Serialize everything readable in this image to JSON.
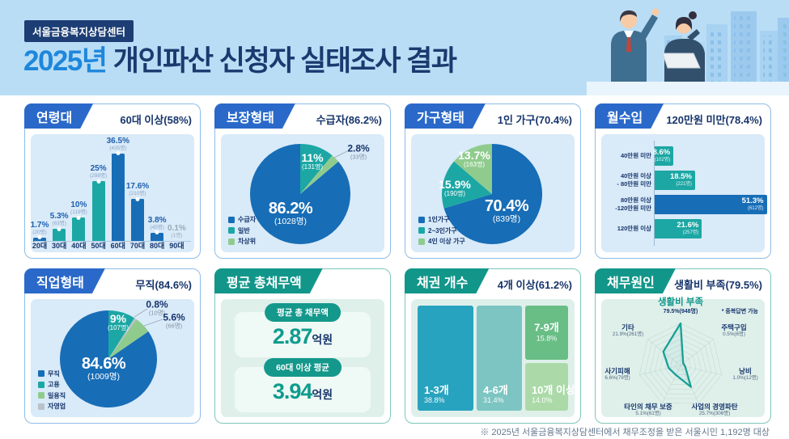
{
  "header": {
    "badge": "서울금융복지상담센터",
    "title_highlight": "2025년",
    "title_rest": " 개인파산 신청자 실태조사 결과"
  },
  "footer": {
    "note": "※ 2025년 서울금융복지상담센터에서 채무조정을 받은 서울시민 1,192명 대상"
  },
  "colors": {
    "band_bg": "#B9DDF5",
    "navy": "#17356B",
    "accent_blue": "#1E87DC",
    "ribbon_blue": "#2A69C9",
    "ribbon_teal": "#12968A",
    "bar_blue": "#176DB6",
    "bar_teal": "#1CA7A4",
    "light_green": "#90CB8E",
    "slice_gray": "#B9C2C9",
    "chart_bg_blue": "#D9EAF8",
    "chart_bg_mint": "#DFF0EB"
  },
  "chart_data": [
    {
      "id": "age",
      "type": "bar",
      "title": "연령대",
      "headline": "60대 이상(58%)",
      "categories": [
        "20대",
        "30대",
        "40대",
        "50대",
        "60대",
        "70대",
        "80대",
        "90대"
      ],
      "values": [
        1.7,
        5.3,
        10,
        25,
        36.5,
        17.6,
        3.8,
        0.1
      ],
      "value_labels": [
        "1.7%",
        "5.3%",
        "10%",
        "25%",
        "36.5%",
        "17.6%",
        "3.8%",
        "0.1%"
      ],
      "counts": [
        "(20명)",
        "(63명)",
        "(119명)",
        "(298명)",
        "(435명)",
        "(210명)",
        "(45명)",
        "(1명)"
      ],
      "bar_colors": [
        "blue",
        "teal",
        "teal",
        "teal",
        "blue",
        "blue",
        "blue",
        "blue"
      ],
      "ylim": [
        0,
        40
      ]
    },
    {
      "id": "security",
      "type": "pie",
      "title": "보장형태",
      "headline": "수급자(86.2%)",
      "slices": [
        {
          "name": "일반",
          "pct": 11,
          "label": "11%",
          "count": "(131명)",
          "color": "teal"
        },
        {
          "name": "차상위",
          "pct": 2.8,
          "label": "2.8%",
          "count": "(33명)",
          "color": "green"
        },
        {
          "name": "수급자",
          "pct": 86.2,
          "label": "86.2%",
          "count": "(1028명)",
          "color": "blue"
        }
      ],
      "legend": [
        {
          "name": "수급자",
          "color": "blue"
        },
        {
          "name": "일반",
          "color": "teal"
        },
        {
          "name": "차상위",
          "color": "green"
        }
      ]
    },
    {
      "id": "household",
      "type": "pie",
      "title": "가구형태",
      "headline": "1인 가구(70.4%)",
      "slices": [
        {
          "name": "1인가구",
          "pct": 70.4,
          "label": "70.4%",
          "count": "(839명)",
          "color": "blue"
        },
        {
          "name": "2~3인가구",
          "pct": 15.9,
          "label": "15.9%",
          "count": "(190명)",
          "color": "teal"
        },
        {
          "name": "4인 이상 가구",
          "pct": 13.7,
          "label": "13.7%",
          "count": "(163명)",
          "color": "green"
        }
      ],
      "legend": [
        {
          "name": "1인가구",
          "color": "blue"
        },
        {
          "name": "2~3인가구",
          "color": "teal"
        },
        {
          "name": "4인 이상 가구",
          "color": "green"
        }
      ]
    },
    {
      "id": "income",
      "type": "bar-horizontal",
      "title": "월수입",
      "headline": "120만원 미만(78.4%)",
      "categories": [
        "40만원 미만",
        "40만원 이상\n- 80만원 미만",
        "80만원 이상\n-120만원 미만",
        "120만원 이상"
      ],
      "values": [
        8.6,
        18.5,
        51.3,
        21.6
      ],
      "value_labels": [
        "8.6%",
        "18.5%",
        "51.3%",
        "21.6%"
      ],
      "counts": [
        "(102명)",
        "(221명)",
        "(612명)",
        "(257명)"
      ],
      "bar_colors": [
        "teal",
        "teal",
        "blue",
        "teal"
      ]
    },
    {
      "id": "job",
      "type": "pie",
      "title": "직업형태",
      "headline": "무직(84.6%)",
      "slices": [
        {
          "name": "고용",
          "pct": 9,
          "label": "9%",
          "count": "(107명)",
          "color": "teal"
        },
        {
          "name": "자영업",
          "pct": 0.8,
          "label": "0.8%",
          "count": "(10명)",
          "color": "gray"
        },
        {
          "name": "일용직",
          "pct": 5.6,
          "label": "5.6%",
          "count": "(66명)",
          "color": "green"
        },
        {
          "name": "무직",
          "pct": 84.6,
          "label": "84.6%",
          "count": "(1009명)",
          "color": "blue"
        }
      ],
      "legend": [
        {
          "name": "무직",
          "color": "blue"
        },
        {
          "name": "고용",
          "color": "teal"
        },
        {
          "name": "일용직",
          "color": "green"
        },
        {
          "name": "자영업",
          "color": "gray"
        }
      ]
    },
    {
      "id": "debt_total",
      "type": "stat",
      "title": "평균 총채무액",
      "cards": [
        {
          "label": "평균 총 채무액",
          "value": "2.87",
          "unit": "억원"
        },
        {
          "label": "60대 이상 평균",
          "value": "3.94",
          "unit": "억원"
        }
      ]
    },
    {
      "id": "creditors",
      "type": "treemap",
      "title": "채권 개수",
      "headline": "4개 이상(61.2%)",
      "blocks": [
        {
          "name": "1-3개",
          "pct": 38.8,
          "label": "38.8%",
          "color": "#27A3BF"
        },
        {
          "name": "4-6개",
          "pct": 31.4,
          "label": "31.4%",
          "color": "#7CC5C2"
        },
        {
          "name": "7-9개",
          "pct": 15.8,
          "label": "15.8%",
          "color": "#68BE85"
        },
        {
          "name": "10개 이상",
          "pct": 14.0,
          "label": "14.0%",
          "color": "#ABDAA8"
        }
      ]
    },
    {
      "id": "causes",
      "type": "radar",
      "title": "채무원인",
      "headline": "생활비 부족(79.5%)",
      "note": "* 중복답변 가능",
      "axes": [
        {
          "name": "생활비 부족",
          "value": 79.5,
          "label": "79.5%(948명)"
        },
        {
          "name": "주택구입",
          "value": 0.5,
          "label": "0.5%(6명)"
        },
        {
          "name": "낭비",
          "value": 1.0,
          "label": "1.0%(12명)"
        },
        {
          "name": "사업의 경영파탄",
          "value": 25.7,
          "label": "25.7%(306명)"
        },
        {
          "name": "타인의 채무 보증",
          "value": 5.1,
          "label": "5.1%(61명)"
        },
        {
          "name": "사기피해",
          "value": 6.6,
          "label": "6.6%(79명)"
        },
        {
          "name": "기타",
          "value": 21.9,
          "label": "21.9%(261명)"
        }
      ]
    }
  ]
}
